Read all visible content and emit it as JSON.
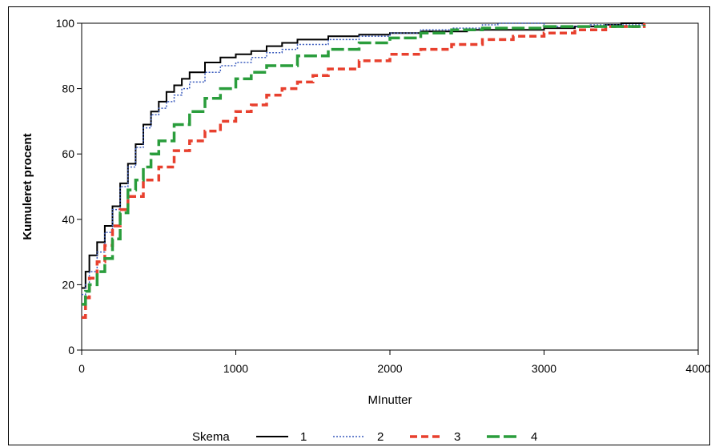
{
  "chart_data": {
    "type": "line",
    "title": "",
    "xlabel": "MInutter",
    "ylabel": "Kumuleret procent",
    "xlim": [
      0,
      4000
    ],
    "ylim": [
      0,
      100
    ],
    "x_ticks": [
      "0",
      "1000",
      "2000",
      "3000",
      "4000"
    ],
    "y_ticks": [
      "0",
      "20",
      "40",
      "60",
      "80",
      "100"
    ],
    "grid": false,
    "legend": {
      "title": "Skema",
      "placement": "bottom",
      "entries": [
        "1",
        "2",
        "3",
        "4"
      ]
    },
    "series": [
      {
        "name": "1",
        "color": "#000000",
        "style": "solid",
        "x": [
          0,
          25,
          50,
          100,
          150,
          200,
          250,
          300,
          350,
          400,
          450,
          500,
          550,
          600,
          650,
          700,
          800,
          900,
          1000,
          1100,
          1200,
          1300,
          1400,
          1600,
          1800,
          2000,
          2200,
          2500,
          3000,
          3200,
          3400,
          3500,
          3650
        ],
        "y": [
          19,
          24,
          29,
          33,
          38,
          44,
          51,
          57,
          63,
          69,
          73,
          76,
          79,
          81,
          83,
          85,
          88,
          89.5,
          90.5,
          91.5,
          93,
          94,
          95,
          96,
          96.5,
          97,
          97.5,
          98,
          98.5,
          99,
          99.5,
          100,
          100
        ]
      },
      {
        "name": "2",
        "color": "#3a5bbd",
        "style": "dotted",
        "x": [
          0,
          25,
          50,
          100,
          150,
          200,
          250,
          300,
          350,
          400,
          450,
          500,
          550,
          600,
          650,
          700,
          800,
          900,
          1000,
          1100,
          1200,
          1300,
          1400,
          1600,
          1800,
          2000,
          2200,
          2400,
          2600,
          2700,
          3000,
          3300,
          3650
        ],
        "y": [
          17,
          20,
          24,
          30,
          36,
          43,
          50,
          56,
          62,
          68,
          72,
          74,
          76,
          78,
          80,
          82,
          85,
          87,
          88,
          89.5,
          91,
          92,
          93.5,
          95,
          96,
          97,
          98,
          98.5,
          99.5,
          100,
          99,
          99.5,
          100
        ]
      },
      {
        "name": "3",
        "color": "#e8402e",
        "style": "dashed",
        "x": [
          0,
          25,
          50,
          100,
          150,
          200,
          250,
          300,
          400,
          500,
          600,
          700,
          800,
          900,
          1000,
          1100,
          1200,
          1300,
          1400,
          1500,
          1600,
          1800,
          2000,
          2200,
          2400,
          2600,
          2800,
          3000,
          3200,
          3400,
          3650
        ],
        "y": [
          10,
          16,
          22,
          27,
          32,
          38,
          43,
          47,
          52,
          56,
          61,
          64,
          67,
          70,
          73,
          75,
          78,
          80,
          82,
          84,
          86,
          88.5,
          90.5,
          92,
          93.5,
          95,
          96,
          97,
          98,
          99,
          100
        ]
      },
      {
        "name": "4",
        "color": "#2a9d3c",
        "style": "long-dash",
        "x": [
          0,
          25,
          50,
          100,
          150,
          200,
          250,
          300,
          350,
          400,
          450,
          500,
          600,
          700,
          800,
          900,
          1000,
          1100,
          1200,
          1400,
          1600,
          1800,
          2000,
          2200,
          2400,
          2600,
          3000,
          3400,
          3650
        ],
        "y": [
          14,
          18,
          20,
          24,
          28,
          34,
          42,
          49,
          52,
          56,
          60,
          64,
          69,
          73,
          77,
          80,
          83,
          85,
          87,
          90,
          92,
          94,
          95.5,
          97,
          98,
          98.5,
          99,
          99,
          99.5
        ]
      }
    ]
  }
}
